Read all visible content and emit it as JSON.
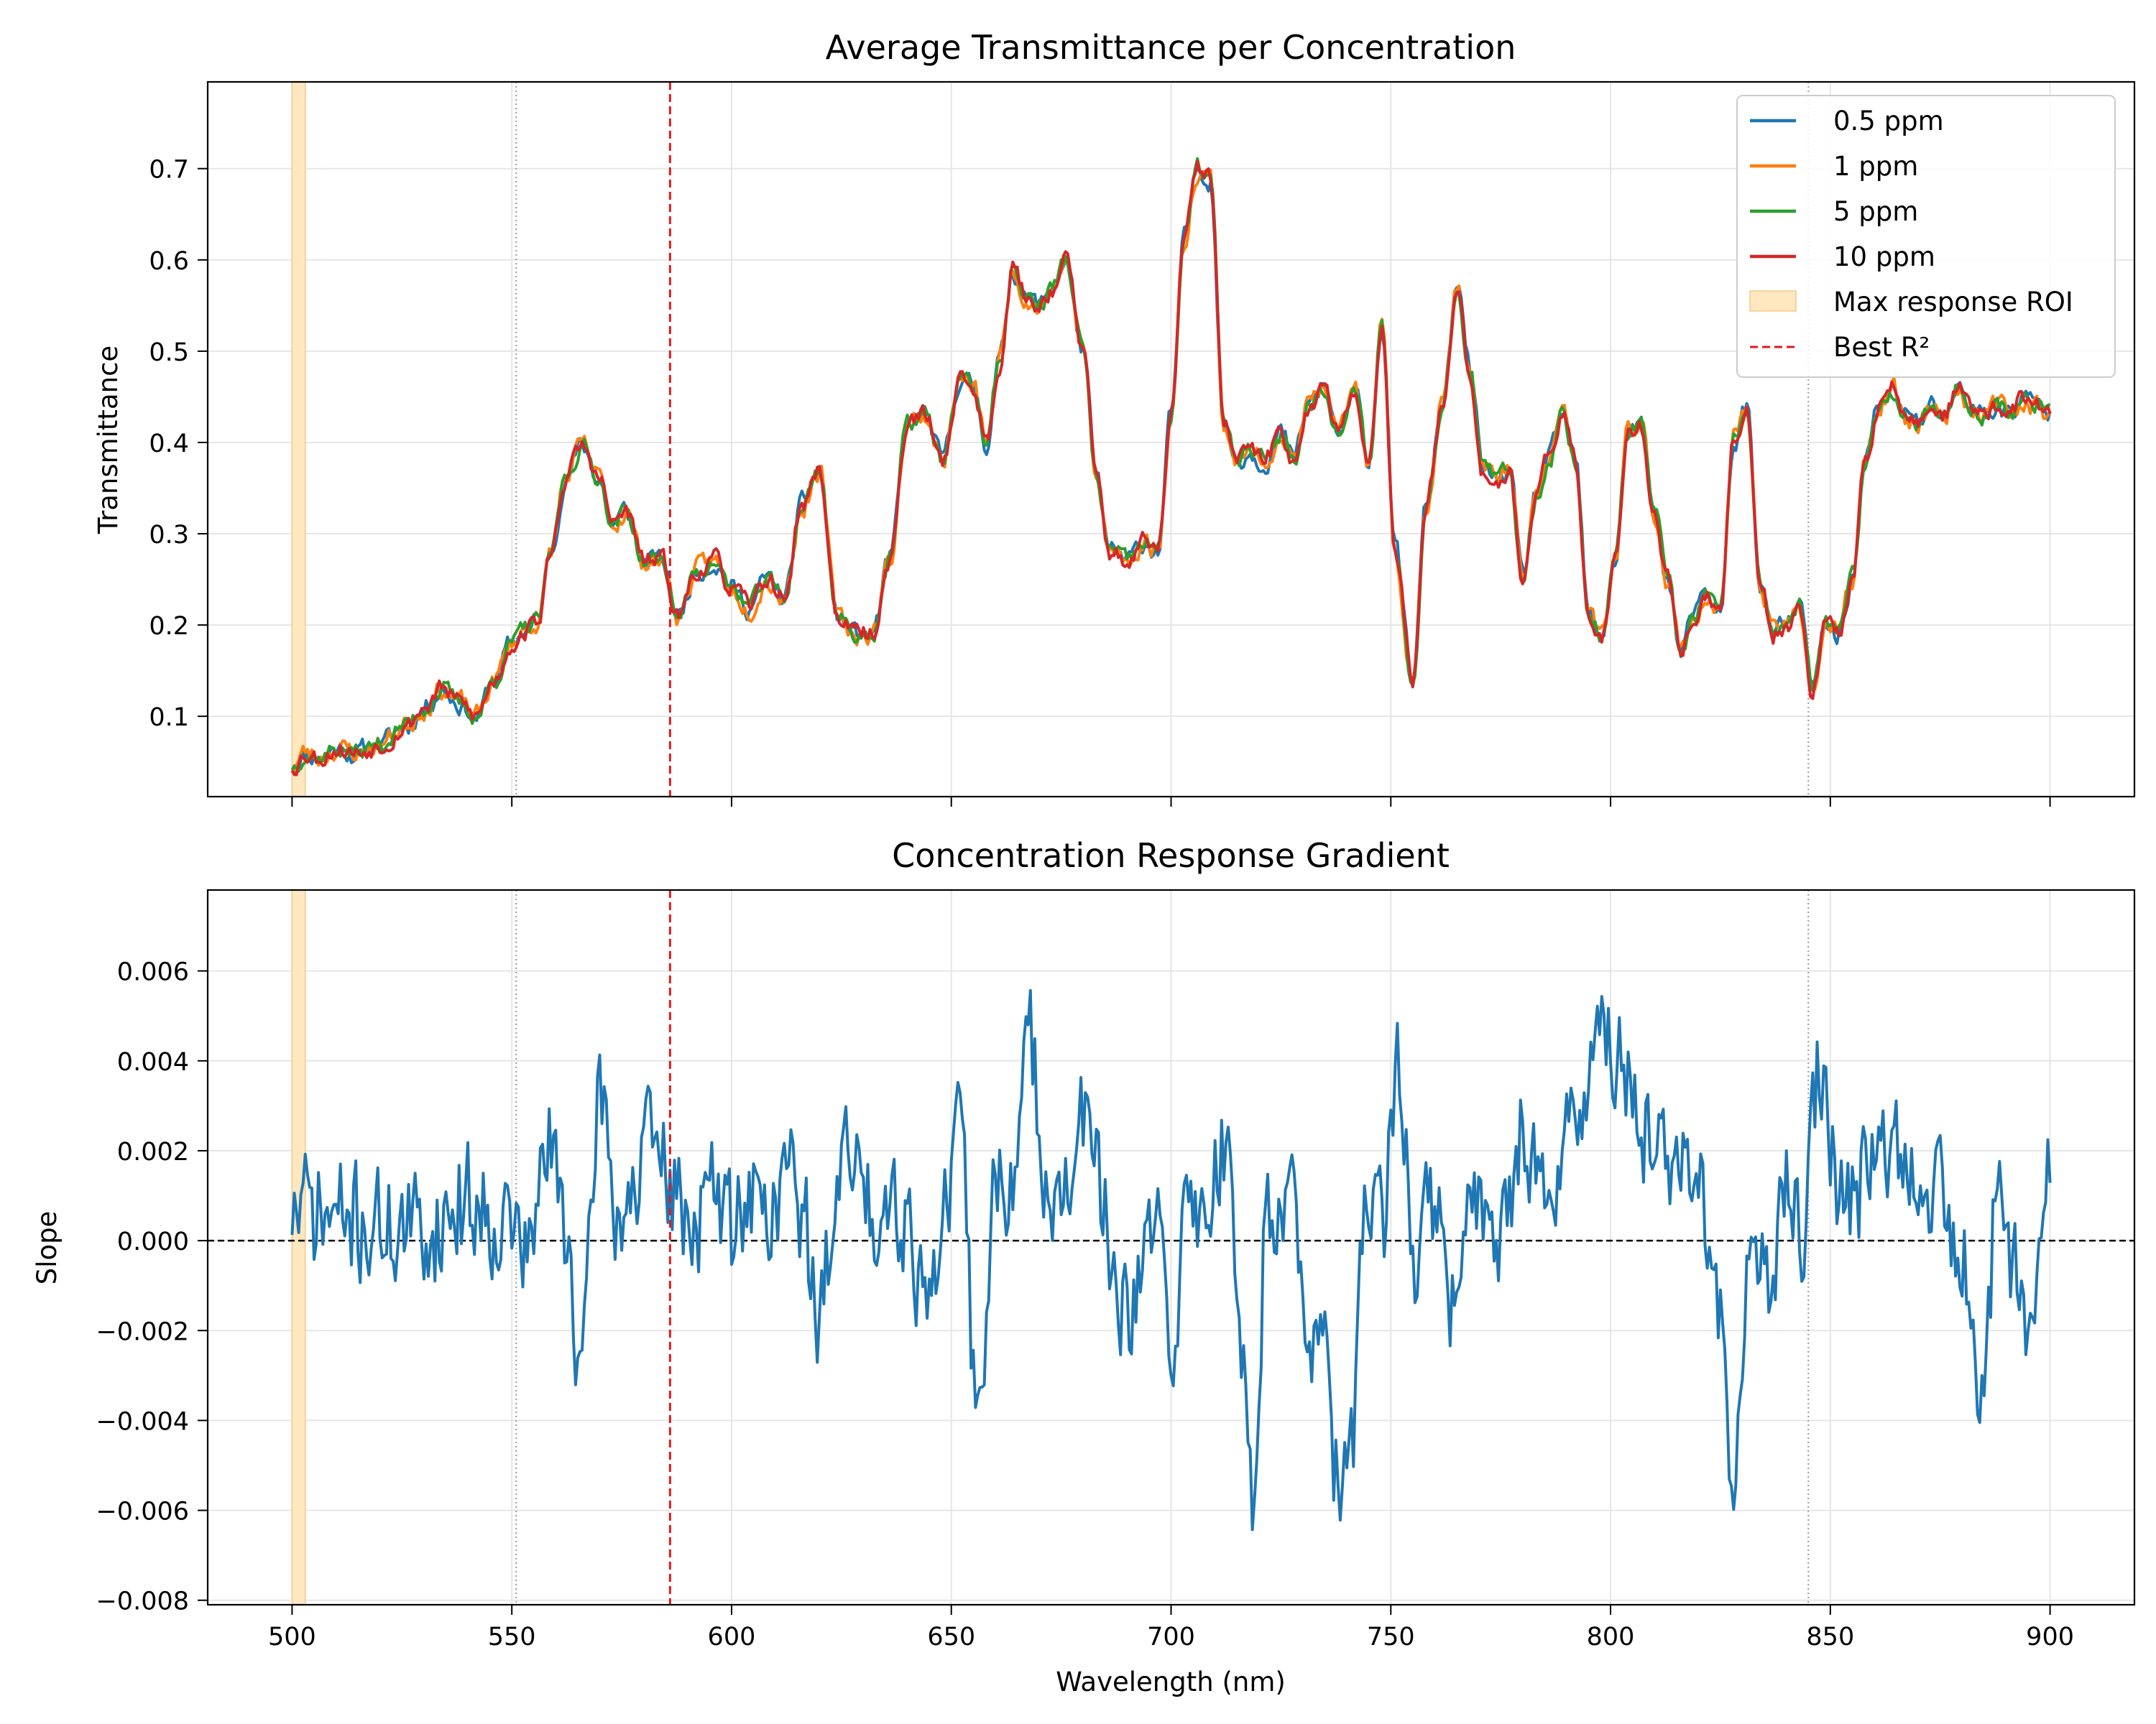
{
  "chart_data": [
    {
      "type": "line",
      "title": "Average Transmittance per Concentration",
      "xlabel": "",
      "ylabel": "Transmittance",
      "xlim": [
        480.8,
        919.2
      ],
      "ylim": [
        0.012,
        0.795
      ],
      "xticks": [
        500,
        550,
        600,
        650,
        700,
        750,
        800,
        850,
        900
      ],
      "xtick_labels_shown": false,
      "yticks": [
        0.1,
        0.2,
        0.3,
        0.4,
        0.5,
        0.6,
        0.7
      ],
      "ytick_labels": [
        "0.1",
        "0.2",
        "0.3",
        "0.4",
        "0.5",
        "0.6",
        "0.7"
      ],
      "grid": true,
      "legend_position": "top-right",
      "x_range": [
        500,
        900
      ],
      "anchors": {
        "x": [
          500,
          503,
          506,
          510,
          515,
          520,
          526,
          530,
          534,
          538,
          542,
          546,
          550,
          553,
          556,
          559,
          562,
          566,
          570,
          573,
          576,
          580,
          584,
          588,
          592,
          596,
          600,
          604,
          608,
          612,
          616,
          620,
          624,
          628,
          632,
          636,
          640,
          644,
          648,
          652,
          655,
          658,
          661,
          664,
          667,
          670,
          673,
          676,
          680,
          683,
          686,
          690,
          694,
          697,
          700,
          703,
          706,
          709,
          712,
          715,
          718,
          721,
          725,
          728,
          731,
          735,
          738,
          742,
          745,
          748,
          751,
          755,
          758,
          762,
          765,
          768,
          771,
          774,
          777,
          780,
          783,
          786,
          789,
          792,
          795,
          798,
          801,
          804,
          807,
          810,
          813,
          816,
          819,
          822,
          825,
          828,
          831,
          834,
          837,
          840,
          843,
          846,
          849,
          852,
          855,
          858,
          861,
          864,
          867,
          870,
          873,
          876,
          879,
          882,
          885,
          888,
          891,
          894,
          897,
          900
        ],
        "y": [
          0.045,
          0.06,
          0.055,
          0.065,
          0.06,
          0.07,
          0.09,
          0.11,
          0.13,
          0.115,
          0.1,
          0.14,
          0.18,
          0.195,
          0.205,
          0.28,
          0.36,
          0.395,
          0.36,
          0.31,
          0.325,
          0.27,
          0.27,
          0.21,
          0.26,
          0.27,
          0.24,
          0.22,
          0.25,
          0.23,
          0.33,
          0.37,
          0.21,
          0.19,
          0.19,
          0.27,
          0.42,
          0.43,
          0.38,
          0.47,
          0.46,
          0.4,
          0.49,
          0.59,
          0.56,
          0.55,
          0.57,
          0.6,
          0.5,
          0.36,
          0.28,
          0.27,
          0.29,
          0.28,
          0.43,
          0.62,
          0.7,
          0.69,
          0.42,
          0.38,
          0.39,
          0.38,
          0.41,
          0.38,
          0.44,
          0.46,
          0.41,
          0.45,
          0.38,
          0.53,
          0.28,
          0.14,
          0.33,
          0.45,
          0.57,
          0.48,
          0.37,
          0.36,
          0.37,
          0.25,
          0.34,
          0.38,
          0.43,
          0.38,
          0.21,
          0.19,
          0.27,
          0.41,
          0.42,
          0.32,
          0.25,
          0.17,
          0.21,
          0.23,
          0.21,
          0.4,
          0.44,
          0.25,
          0.19,
          0.2,
          0.22,
          0.13,
          0.2,
          0.19,
          0.25,
          0.38,
          0.44,
          0.46,
          0.43,
          0.42,
          0.44,
          0.43,
          0.46,
          0.44,
          0.43,
          0.44,
          0.43,
          0.45,
          0.44,
          0.43
        ]
      },
      "series": [
        {
          "name": "0.5 ppm",
          "color": "#1f77b4",
          "amp": 0.012,
          "seed": 11
        },
        {
          "name": "1 ppm",
          "color": "#ff7f0e",
          "amp": 0.012,
          "seed": 23
        },
        {
          "name": "5 ppm",
          "color": "#2ca02c",
          "amp": 0.01,
          "seed": 37
        },
        {
          "name": "10 ppm",
          "color": "#d62728",
          "amp": 0.011,
          "seed": 53
        }
      ],
      "roi": {
        "label": "Max response ROI",
        "range": [
          500,
          503
        ],
        "color": "#ffe7bf"
      },
      "best_r2": {
        "label": "Best R²",
        "x": 586,
        "color": "#e31a1c"
      },
      "dotted_verticals": [
        551,
        845
      ]
    },
    {
      "type": "line",
      "title": "Concentration Response Gradient",
      "xlabel": "Wavelength (nm)",
      "ylabel": "Slope",
      "xlim": [
        480.8,
        919.2
      ],
      "ylim": [
        -0.0081,
        0.0078
      ],
      "xticks": [
        500,
        550,
        600,
        650,
        700,
        750,
        800,
        850,
        900
      ],
      "xtick_labels": [
        "500",
        "550",
        "600",
        "650",
        "700",
        "750",
        "800",
        "850",
        "900"
      ],
      "yticks": [
        -0.008,
        -0.006,
        -0.004,
        -0.002,
        0.0,
        0.002,
        0.004,
        0.006
      ],
      "ytick_labels": [
        "−0.008",
        "−0.006",
        "−0.004",
        "−0.002",
        "0.000",
        "0.002",
        "0.004",
        "0.006"
      ],
      "grid": true,
      "zero_line": 0.0,
      "x_range": [
        500,
        900
      ],
      "series": [
        {
          "name": "",
          "color": "#1f77b4",
          "anchors": {
            "x": [
              500,
              510,
              520,
              530,
              540,
              550,
              554,
              558,
              562,
              566,
              570,
              574,
              578,
              582,
              585,
              588,
              592,
              596,
              600,
              604,
              608,
              612,
              616,
              620,
              624,
              628,
              632,
              636,
              640,
              644,
              648,
              652,
              656,
              660,
              664,
              668,
              672,
              676,
              680,
              684,
              688,
              692,
              696,
              700,
              704,
              708,
              712,
              716,
              719,
              722,
              726,
              730,
              734,
              738,
              741,
              744,
              748,
              752,
              756,
              760,
              764,
              768,
              772,
              776,
              780,
              784,
              788,
              792,
              796,
              800,
              804,
              808,
              812,
              816,
              820,
              824,
              828,
              832,
              836,
              840,
              844,
              848,
              852,
              856,
              860,
              864,
              868,
              872,
              876,
              880,
              884,
              888,
              892,
              896,
              900
            ],
            "y": [
              0.0007,
              0.0005,
              0.0003,
              0.0002,
              0.0009,
              0.0004,
              -0.0004,
              0.0022,
              0.0005,
              -0.003,
              0.0035,
              0.0006,
              0.0012,
              0.0021,
              0.0016,
              0.0007,
              0.0005,
              0.0011,
              0.0003,
              0.0012,
              0.0004,
              0.0016,
              0.0008,
              -0.002,
              0.0016,
              0.0017,
              0.0007,
              0.0012,
              0.0005,
              -0.0012,
              0.0003,
              0.0024,
              -0.004,
              0.0012,
              0.0014,
              0.0042,
              0.0015,
              0.0007,
              0.0028,
              0.0012,
              -0.002,
              -0.0015,
              0.0004,
              -0.002,
              0.0006,
              0.0009,
              0.0022,
              -0.0022,
              -0.0055,
              0.0009,
              0.0014,
              -0.0012,
              -0.0025,
              -0.0055,
              -0.0048,
              0.0006,
              0.0002,
              0.0038,
              -0.0005,
              0.0009,
              -0.0015,
              0.0004,
              0.0009,
              0.0003,
              0.0025,
              0.0015,
              0.0012,
              0.0028,
              0.0045,
              0.004,
              0.0037,
              0.0025,
              0.0018,
              0.002,
              0.0009,
              -0.0018,
              -0.0045,
              -0.001,
              -0.0008,
              0.0009,
              0.0004,
              0.0038,
              0.0009,
              0.0008,
              0.0026,
              0.0021,
              0.0019,
              0.0015,
              0.0012,
              -0.0005,
              -0.0042,
              0.0008,
              -0.0005,
              -0.0018,
              0.0025
            ]
          },
          "amp": 0.0011,
          "seed": 71
        }
      ]
    }
  ]
}
